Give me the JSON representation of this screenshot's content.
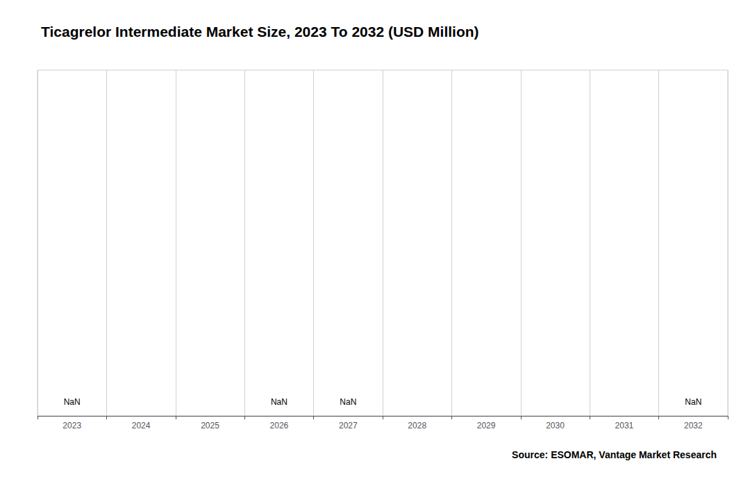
{
  "chart_data": {
    "type": "bar",
    "title": "Ticagrelor Intermediate Market Size, 2023 To 2032 (USD Million)",
    "categories": [
      "2023",
      "2024",
      "2025",
      "2026",
      "2027",
      "2028",
      "2029",
      "2030",
      "2031",
      "2032"
    ],
    "values": [
      null,
      null,
      null,
      null,
      null,
      null,
      null,
      null,
      null,
      null
    ],
    "annotations": [
      {
        "x": "2023",
        "text": "NaN"
      },
      {
        "x": "2026",
        "text": "NaN"
      },
      {
        "x": "2027",
        "text": "NaN"
      },
      {
        "x": "2032",
        "text": "NaN"
      }
    ],
    "source": "Source: ESOMAR, Vantage Market Research",
    "ylim": [
      0,
      1
    ],
    "yticks": [],
    "tick_labels": "x",
    "grid": true
  }
}
